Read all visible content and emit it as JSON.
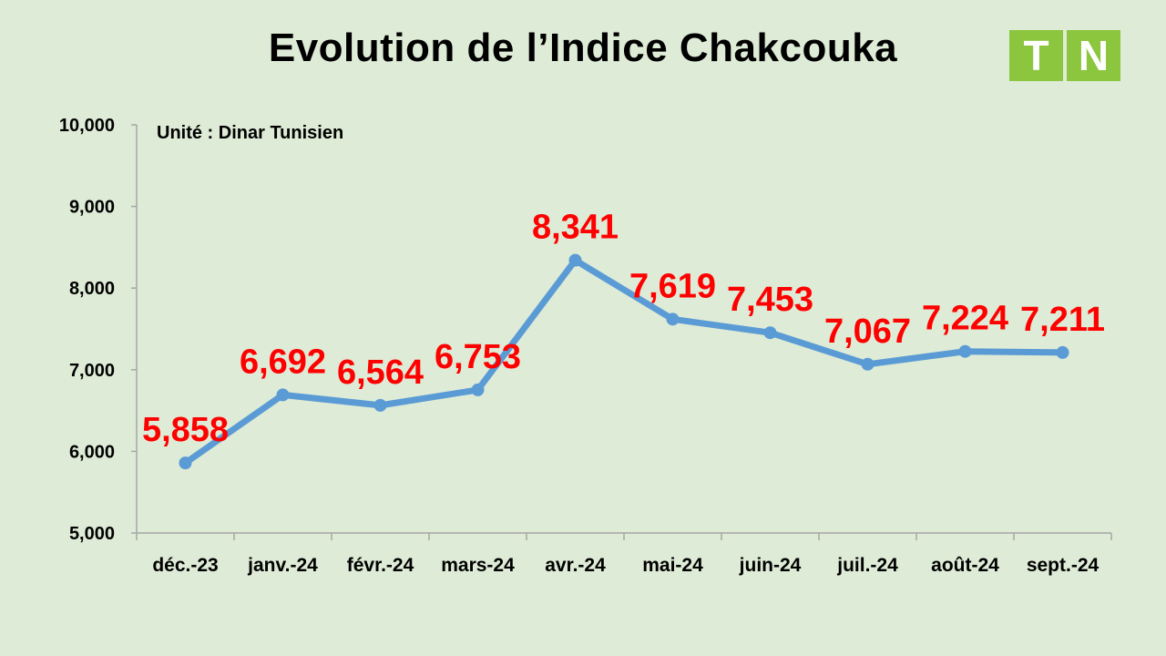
{
  "title": "Evolution de l’Indice Chakcouka",
  "logo": {
    "letters": [
      "T",
      "N"
    ],
    "color": "#8cc63f"
  },
  "chart_data": {
    "type": "line",
    "title": "Evolution de l’Indice Chakcouka",
    "unit_note": "Unité : Dinar Tunisien",
    "categories": [
      "déc.-23",
      "janv.-24",
      "févr.-24",
      "mars-24",
      "avr.-24",
      "mai-24",
      "juin-24",
      "juil.-24",
      "août-24",
      "sept.-24"
    ],
    "series": [
      {
        "values": [
          5.858,
          6.692,
          6.564,
          6.753,
          8.341,
          7.619,
          7.453,
          7.067,
          7.224,
          7.211
        ],
        "data_labels": [
          "5,858",
          "6,692",
          "6,564",
          "6,753",
          "8,341",
          "7,619",
          "7,453",
          "7,067",
          "7,224",
          "7,211"
        ],
        "color": "#5b9bd5",
        "label_color": "#ff0000"
      }
    ],
    "ylim": [
      5,
      10
    ],
    "yticks": [
      5,
      6,
      7,
      8,
      9,
      10
    ],
    "ytick_labels": [
      "5,000",
      "6,000",
      "7,000",
      "8,000",
      "9,000",
      "10,000"
    ],
    "xlabel": "",
    "ylabel": "",
    "grid": false,
    "legend": "none"
  }
}
